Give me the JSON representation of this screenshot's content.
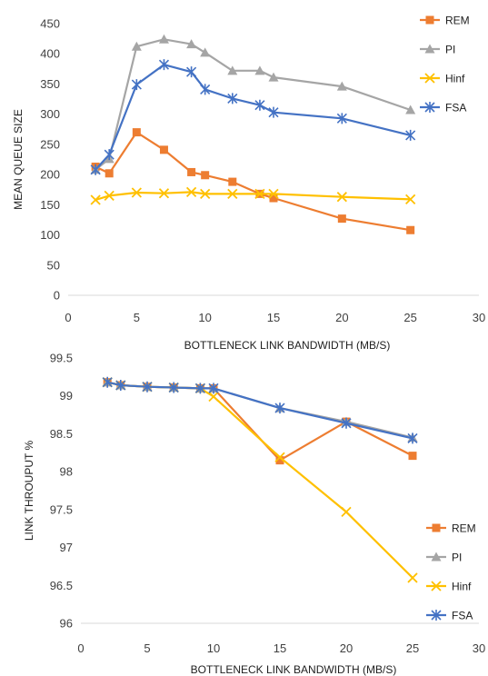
{
  "chart_data": [
    {
      "type": "line",
      "xlabel": "BOTTLENECK LINK BANDWIDTH (MB/S)",
      "ylabel": "MEAN QUEUE SIZE",
      "xlim": [
        0,
        30
      ],
      "ylim": [
        0,
        450
      ],
      "xticks": [
        0,
        5,
        10,
        15,
        20,
        25,
        30
      ],
      "yticks": [
        0,
        50,
        100,
        150,
        200,
        250,
        300,
        350,
        400,
        450
      ],
      "grid": false,
      "legend": "right",
      "series": [
        {
          "name": "REM",
          "color": "#ED7D31",
          "marker": "square",
          "x": [
            2,
            3,
            5,
            7,
            9,
            10,
            12,
            14,
            15,
            20,
            25
          ],
          "y": [
            213,
            202,
            270,
            241,
            204,
            199,
            188,
            168,
            161,
            127,
            108
          ]
        },
        {
          "name": "PI",
          "color": "#A5A5A5",
          "marker": "triangle",
          "x": [
            2,
            3,
            5,
            7,
            9,
            10,
            12,
            14,
            15,
            20,
            25
          ],
          "y": [
            208,
            226,
            412,
            424,
            416,
            402,
            372,
            372,
            361,
            346,
            307
          ]
        },
        {
          "name": "Hinf",
          "color": "#FFC000",
          "marker": "x",
          "x": [
            2,
            3,
            5,
            7,
            9,
            10,
            12,
            14,
            15,
            20,
            25
          ],
          "y": [
            158,
            165,
            170,
            169,
            171,
            168,
            168,
            168,
            168,
            163,
            159
          ]
        },
        {
          "name": "FSA",
          "color": "#4472C4",
          "marker": "star",
          "x": [
            2,
            3,
            5,
            7,
            9,
            10,
            12,
            14,
            15,
            20,
            25
          ],
          "y": [
            208,
            233,
            349,
            382,
            370,
            341,
            326,
            315,
            303,
            293,
            265
          ]
        }
      ]
    },
    {
      "type": "line",
      "xlabel": "BOTTLENECK LINK BANDWIDTH (MB/S)",
      "ylabel": "LINK THROUPUT %",
      "xlim": [
        0,
        30
      ],
      "ylim": [
        96,
        99.5
      ],
      "xticks": [
        0,
        5,
        10,
        15,
        20,
        25,
        30
      ],
      "yticks": [
        96,
        96.5,
        97,
        97.5,
        98,
        98.5,
        99,
        99.5
      ],
      "grid": false,
      "legend": "bottom-right",
      "series": [
        {
          "name": "REM",
          "color": "#ED7D31",
          "marker": "square",
          "x": [
            2,
            3,
            5,
            7,
            9,
            10,
            15,
            20,
            25
          ],
          "y": [
            99.18,
            99.14,
            99.12,
            99.11,
            99.1,
            99.1,
            98.15,
            98.66,
            98.21
          ]
        },
        {
          "name": "PI",
          "color": "#A5A5A5",
          "marker": "triangle",
          "x": [
            2,
            3,
            5,
            7,
            9,
            10,
            15,
            20,
            25
          ],
          "y": [
            99.18,
            99.14,
            99.12,
            99.11,
            99.1,
            99.1,
            98.84,
            98.66,
            98.45
          ]
        },
        {
          "name": "Hinf",
          "color": "#FFC000",
          "marker": "x",
          "x": [
            2,
            3,
            5,
            7,
            9,
            10,
            15,
            20,
            25
          ],
          "y": [
            99.18,
            99.14,
            99.12,
            99.11,
            99.1,
            98.99,
            98.19,
            97.47,
            96.6
          ]
        },
        {
          "name": "FSA",
          "color": "#4472C4",
          "marker": "star",
          "x": [
            2,
            3,
            5,
            7,
            9,
            10,
            15,
            20,
            25
          ],
          "y": [
            99.18,
            99.14,
            99.12,
            99.11,
            99.1,
            99.1,
            98.84,
            98.64,
            98.44
          ]
        }
      ]
    }
  ]
}
